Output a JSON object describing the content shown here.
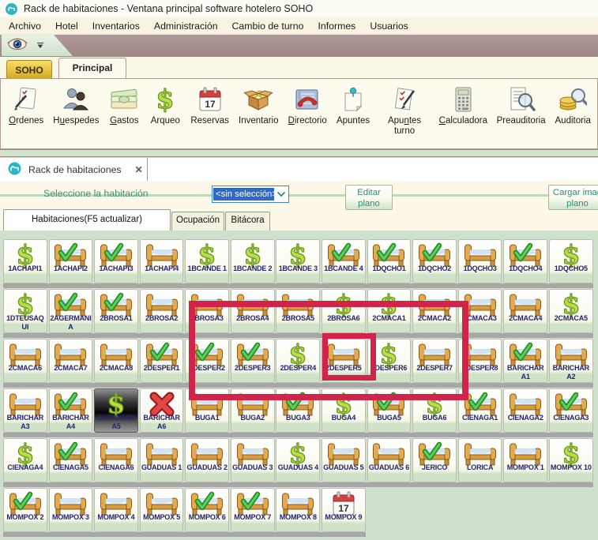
{
  "window": {
    "title": "Rack de habitaciones  - Ventana principal software hotelero SOHO"
  },
  "menu": {
    "items": [
      "Archivo",
      "Hotel",
      "Inventarios",
      "Administración",
      "Cambio de turno",
      "Informes",
      "Usuarios"
    ]
  },
  "ribbon": {
    "tabs": {
      "soho": "SOHO",
      "principal": "Principal"
    },
    "buttons": [
      {
        "label": "Ordenes",
        "underline": 0,
        "icon": "ordenes"
      },
      {
        "label": "Huespedes",
        "underline": 1,
        "icon": "huespedes"
      },
      {
        "label": "Gastos",
        "underline": 0,
        "icon": "gastos"
      },
      {
        "label": "Arqueo",
        "underline": null,
        "icon": "dollar"
      },
      {
        "label": "Reservas",
        "underline": null,
        "icon": "calendar"
      },
      {
        "label": "Inventario",
        "underline": null,
        "icon": "inventario"
      },
      {
        "label": "Directorio",
        "underline": 0,
        "icon": "directorio"
      },
      {
        "label": "Apuntes",
        "underline": null,
        "icon": "apuntes"
      },
      {
        "label": "Apuntes turno",
        "underline": 3,
        "icon": "apuntesturno"
      },
      {
        "label": "Calculadora",
        "underline": 0,
        "icon": "calculadora"
      },
      {
        "label": "Preauditoria",
        "underline": null,
        "icon": "preauditoria"
      },
      {
        "label": "Auditoria",
        "underline": null,
        "icon": "auditoria"
      }
    ]
  },
  "document_tab": {
    "label": "Rack de habitaciones",
    "close_glyph": "✕"
  },
  "selection_bar": {
    "label": "Seleccione la habitación",
    "combo_value": "<sin selección>",
    "edit_plan_button": {
      "line1": "Editar",
      "line2": "plano"
    },
    "load_plan_button": {
      "line1": "Cargar imag",
      "line2": "plano"
    }
  },
  "view_tabs": {
    "habitaciones": "Habitaciones(F5 actualizar)",
    "ocupacion": "Ocupación",
    "bitacora": "Bitácora"
  },
  "calendar_day": "17",
  "rooms": {
    "rows": [
      [
        {
          "n": "1ACHAPI1",
          "i": "d"
        },
        {
          "n": "1ACHAPI2",
          "i": "c"
        },
        {
          "n": "1ACHAPI3",
          "i": "c"
        },
        {
          "n": "1ACHAPI4",
          "i": "b"
        },
        {
          "n": "1BCANDE 1",
          "i": "d"
        },
        {
          "n": "1BCANDE 2",
          "i": "d"
        },
        {
          "n": "1BCANDE 3",
          "i": "d"
        },
        {
          "n": "1BCANDE 4",
          "i": "c"
        },
        {
          "n": "1DQCHO1",
          "i": "c"
        },
        {
          "n": "1DQCHO2",
          "i": "c"
        },
        {
          "n": "1DQCHO3",
          "i": "b"
        },
        {
          "n": "1DQCHO4",
          "i": "c"
        },
        {
          "n": "1DQCHO5",
          "i": "d"
        }
      ],
      [
        {
          "n": "1DTEUSAQUI",
          "i": "d"
        },
        {
          "n": "2AGERMANIA",
          "i": "c"
        },
        {
          "n": "2BROSA1",
          "i": "c"
        },
        {
          "n": "2BROSA2",
          "i": "b"
        },
        {
          "n": "2BROSA3",
          "i": "b"
        },
        {
          "n": "2BROSA4",
          "i": "b"
        },
        {
          "n": "2BROSA5",
          "i": "b"
        },
        {
          "n": "2BROSA6",
          "i": "d"
        },
        {
          "n": "2CMACA1",
          "i": "d"
        },
        {
          "n": "2CMACA2",
          "i": "b"
        },
        {
          "n": "2CMACA3",
          "i": "b"
        },
        {
          "n": "2CMACA4",
          "i": "b"
        },
        {
          "n": "2CMACA5",
          "i": "d"
        }
      ],
      [
        {
          "n": "2CMACA6",
          "i": "b"
        },
        {
          "n": "2CMACA7",
          "i": "b"
        },
        {
          "n": "2CMACA8",
          "i": "b"
        },
        {
          "n": "2DESPER1",
          "i": "c"
        },
        {
          "n": "2DESPER2",
          "i": "c"
        },
        {
          "n": "2DESPER3",
          "i": "c"
        },
        {
          "n": "2DESPER4",
          "i": "d"
        },
        {
          "n": "2DESPER5",
          "i": "b"
        },
        {
          "n": "2DESPER6",
          "i": "d"
        },
        {
          "n": "2DESPER7",
          "i": "b"
        },
        {
          "n": "2DESPER8",
          "i": "b"
        },
        {
          "n": "BARICHAR A1",
          "i": "c"
        },
        {
          "n": "BARICHAR A2",
          "i": "b"
        }
      ],
      [
        {
          "n": "BARICHAR A3",
          "i": "b"
        },
        {
          "n": "BARICHAR A4",
          "i": "c"
        },
        {
          "n": "BARICHAR A5",
          "i": "d",
          "dark": true
        },
        {
          "n": "BARICHAR A6",
          "i": "x"
        },
        {
          "n": "BUGA1",
          "i": "b"
        },
        {
          "n": "BUGA2",
          "i": "b"
        },
        {
          "n": "BUGA3",
          "i": "c"
        },
        {
          "n": "BUGA4",
          "i": "d"
        },
        {
          "n": "BUGA5",
          "i": "c"
        },
        {
          "n": "BUGA6",
          "i": "d"
        },
        {
          "n": "CIENAGA1",
          "i": "c"
        },
        {
          "n": "CIENAGA2",
          "i": "b"
        },
        {
          "n": "CIENAGA3",
          "i": "c"
        }
      ],
      [
        {
          "n": "CIENAGA4",
          "i": "d"
        },
        {
          "n": "CIENAGA5",
          "i": "c"
        },
        {
          "n": "CIENAGA6",
          "i": "b"
        },
        {
          "n": "GUADUAS 1",
          "i": "b"
        },
        {
          "n": "GUADUAS 2",
          "i": "b"
        },
        {
          "n": "GUADUAS 3",
          "i": "b"
        },
        {
          "n": "GUADUAS 4",
          "i": "d"
        },
        {
          "n": "GUADUAS 5",
          "i": "b"
        },
        {
          "n": "GUADUAS 6",
          "i": "b"
        },
        {
          "n": "JERICO",
          "i": "c"
        },
        {
          "n": "LORICA",
          "i": "b"
        },
        {
          "n": "MOMPOX 1",
          "i": "b"
        },
        {
          "n": "MOMPOX 10",
          "i": "d"
        }
      ],
      [
        {
          "n": "MOMPOX 2",
          "i": "c"
        },
        {
          "n": "MOMPOX 3",
          "i": "b"
        },
        {
          "n": "MOMPOX 4",
          "i": "b"
        },
        {
          "n": "MOMPOX 5",
          "i": "b"
        },
        {
          "n": "MOMPOX 6",
          "i": "c"
        },
        {
          "n": "MOMPOX 7",
          "i": "c"
        },
        {
          "n": "MOMPOX 8",
          "i": "b"
        },
        {
          "n": "MOMPOX 9",
          "i": "cal"
        }
      ]
    ]
  },
  "colors": {
    "highlight_red": "#d2234a",
    "soho_tab_gold": "#e7c33e",
    "teal_accent": "#2ab5c5",
    "grid_background": "#cfe0cd",
    "combo_selection_blue": "#316ac5",
    "room_label_navy": "#23246e"
  }
}
